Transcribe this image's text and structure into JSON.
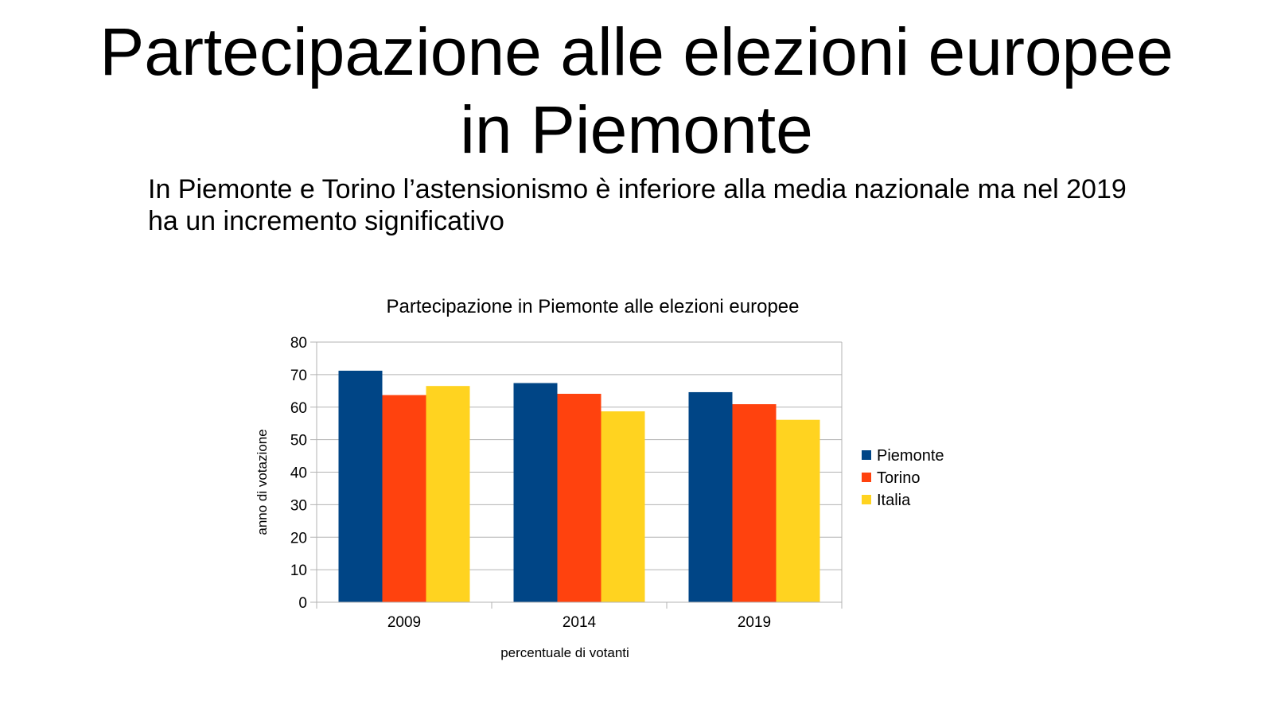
{
  "slide": {
    "title": "Partecipazione alle elezioni europee\nin Piemonte",
    "subtitle": "In Piemonte e Torino l’astensionismo è inferiore alla media nazionale ma nel 2019 ha un incremento significativo"
  },
  "chart_data": {
    "type": "bar",
    "title": "Partecipazione in Piemonte alle elezioni europee",
    "xlabel": "percentuale di votanti",
    "ylabel": "anno di votazione",
    "categories": [
      "2009",
      "2014",
      "2019"
    ],
    "ylim": [
      0,
      80
    ],
    "yticks": [
      0,
      10,
      20,
      30,
      40,
      50,
      60,
      70,
      80
    ],
    "grid": true,
    "legend": "right",
    "series": [
      {
        "name": "Piemonte",
        "color": "#004586",
        "values": [
          71.2,
          67.4,
          64.6
        ]
      },
      {
        "name": "Torino",
        "color": "#FF420E",
        "values": [
          63.7,
          64.1,
          60.9
        ]
      },
      {
        "name": "Italia",
        "color": "#FFD320",
        "values": [
          66.5,
          58.7,
          56.1
        ]
      }
    ]
  }
}
